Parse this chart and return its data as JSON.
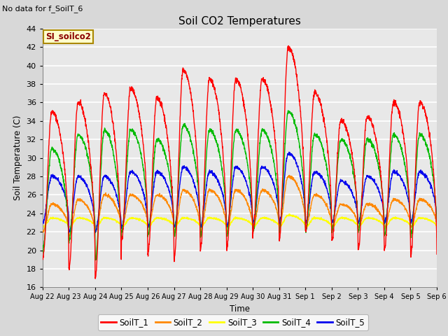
{
  "title": "Soil CO2 Temperatures",
  "ylabel": "Soil Temperature (C)",
  "xlabel": "Time",
  "top_left_text": "No data for f_SoilT_6",
  "box_label": "SI_soilco2",
  "ylim": [
    16,
    44
  ],
  "yticks": [
    16,
    18,
    20,
    22,
    24,
    26,
    28,
    30,
    32,
    34,
    36,
    38,
    40,
    42,
    44
  ],
  "x_tick_labels": [
    "Aug 22",
    "Aug 23",
    "Aug 24",
    "Aug 25",
    "Aug 26",
    "Aug 27",
    "Aug 28",
    "Aug 29",
    "Aug 30",
    "Aug 31",
    "Sep 1",
    "Sep 2",
    "Sep 3",
    "Sep 4",
    "Sep 5",
    "Sep 6"
  ],
  "colors": {
    "SoilT_1": "#ff0000",
    "SoilT_2": "#ff8800",
    "SoilT_3": "#ffff00",
    "SoilT_4": "#00bb00",
    "SoilT_5": "#0000ee"
  },
  "background_color": "#d8d8d8",
  "plot_background": "#e8e8e8",
  "grid_color": "#ffffff"
}
